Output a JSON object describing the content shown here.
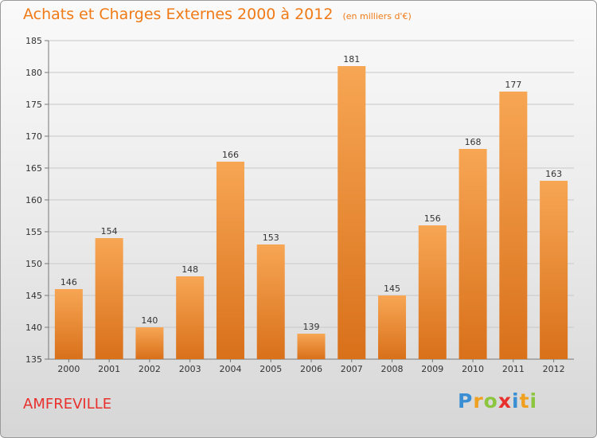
{
  "header": {
    "title": "Achats et Charges Externes 2000 à 2012",
    "subtitle": "(en milliers d'€)"
  },
  "footer": {
    "commune": "AMFREVILLE",
    "logo_letters": [
      "P",
      "r",
      "o",
      "x",
      "i",
      "t",
      "i"
    ],
    "logo_colors": [
      "#3a8fd4",
      "#f0a020",
      "#8cc63f",
      "#e8302c",
      "#3a8fd4",
      "#f0a020",
      "#8cc63f"
    ]
  },
  "colors": {
    "bar_top": "#f7a654",
    "bar_bottom": "#d9701a",
    "accent": "#f07a16"
  },
  "chart_data": {
    "type": "bar",
    "categories": [
      "2000",
      "2001",
      "2002",
      "2003",
      "2004",
      "2005",
      "2006",
      "2007",
      "2008",
      "2009",
      "2010",
      "2011",
      "2012"
    ],
    "values": [
      146,
      154,
      140,
      148,
      166,
      153,
      139,
      181,
      145,
      156,
      168,
      177,
      163
    ],
    "title": "Achats et Charges Externes 2000 à 2012",
    "xlabel": "",
    "ylabel": "",
    "ylim": [
      135,
      185
    ],
    "yticks": [
      135,
      140,
      145,
      150,
      155,
      160,
      165,
      170,
      175,
      180,
      185
    ],
    "grid": true
  }
}
